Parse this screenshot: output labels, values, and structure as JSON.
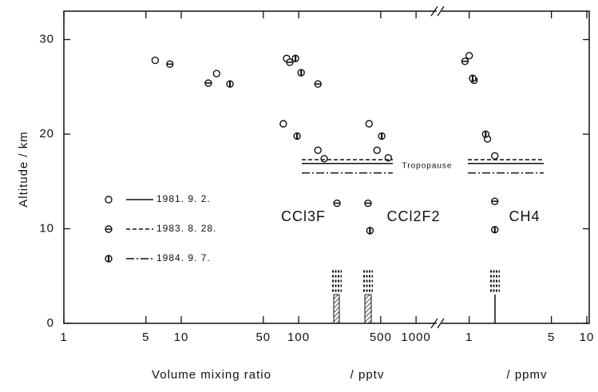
{
  "chart_data": {
    "type": "scatter",
    "xlabel": "Volume  mixing  ratio",
    "ylabel": "Altitude  / km",
    "x_unit_label": "/ pptv",
    "x2_unit_label": "/ ppmv",
    "xscale": "log",
    "xlim": [
      1,
      1500
    ],
    "xticks": [
      1,
      5,
      10,
      50,
      100,
      500,
      1000
    ],
    "x2lim": [
      0.6,
      10
    ],
    "x2ticks": [
      1,
      5,
      10
    ],
    "ylim": [
      0,
      33
    ],
    "yticks": [
      0,
      10,
      20,
      30
    ],
    "annotations": [
      "CCl3F",
      "CCl2F2",
      "CH4",
      "Tropopause"
    ],
    "series": [
      {
        "name": "1981. 9. 2.",
        "marker": "open",
        "linestyle": "solid",
        "tropopause": 16.9,
        "x": [
          6,
          20,
          74,
          79,
          146,
          165,
          398,
          465,
          580
        ],
        "values": [
          27.8,
          26.4,
          21.1,
          28.0,
          18.3,
          17.4,
          21.1,
          18.3,
          17.5
        ],
        "x2": [
          1.0,
          1.43,
          1.65
        ],
        "values2": [
          28.3,
          19.5,
          17.7
        ]
      },
      {
        "name": "1983. 8. 28.",
        "marker": "hbar",
        "linestyle": "dashed",
        "tropopause": 17.3,
        "x": [
          8,
          17,
          84,
          146,
          212,
          390
        ],
        "values": [
          27.4,
          25.4,
          27.6,
          25.3,
          12.7,
          12.7
        ],
        "x2": [
          0.92,
          1.1,
          1.65
        ],
        "values2": [
          27.7,
          25.7,
          12.9
        ]
      },
      {
        "name": "1984. 9. 7.",
        "marker": "vbar",
        "linestyle": "dashdot",
        "tropopause": 15.9,
        "x": [
          26,
          94,
          97,
          105,
          510,
          405
        ],
        "values": [
          25.3,
          28.0,
          19.8,
          26.5,
          19.8,
          9.8
        ],
        "x2": [
          1.07,
          1.38,
          1.65
        ],
        "values2": [
          25.9,
          20.0,
          9.9
        ]
      }
    ]
  }
}
